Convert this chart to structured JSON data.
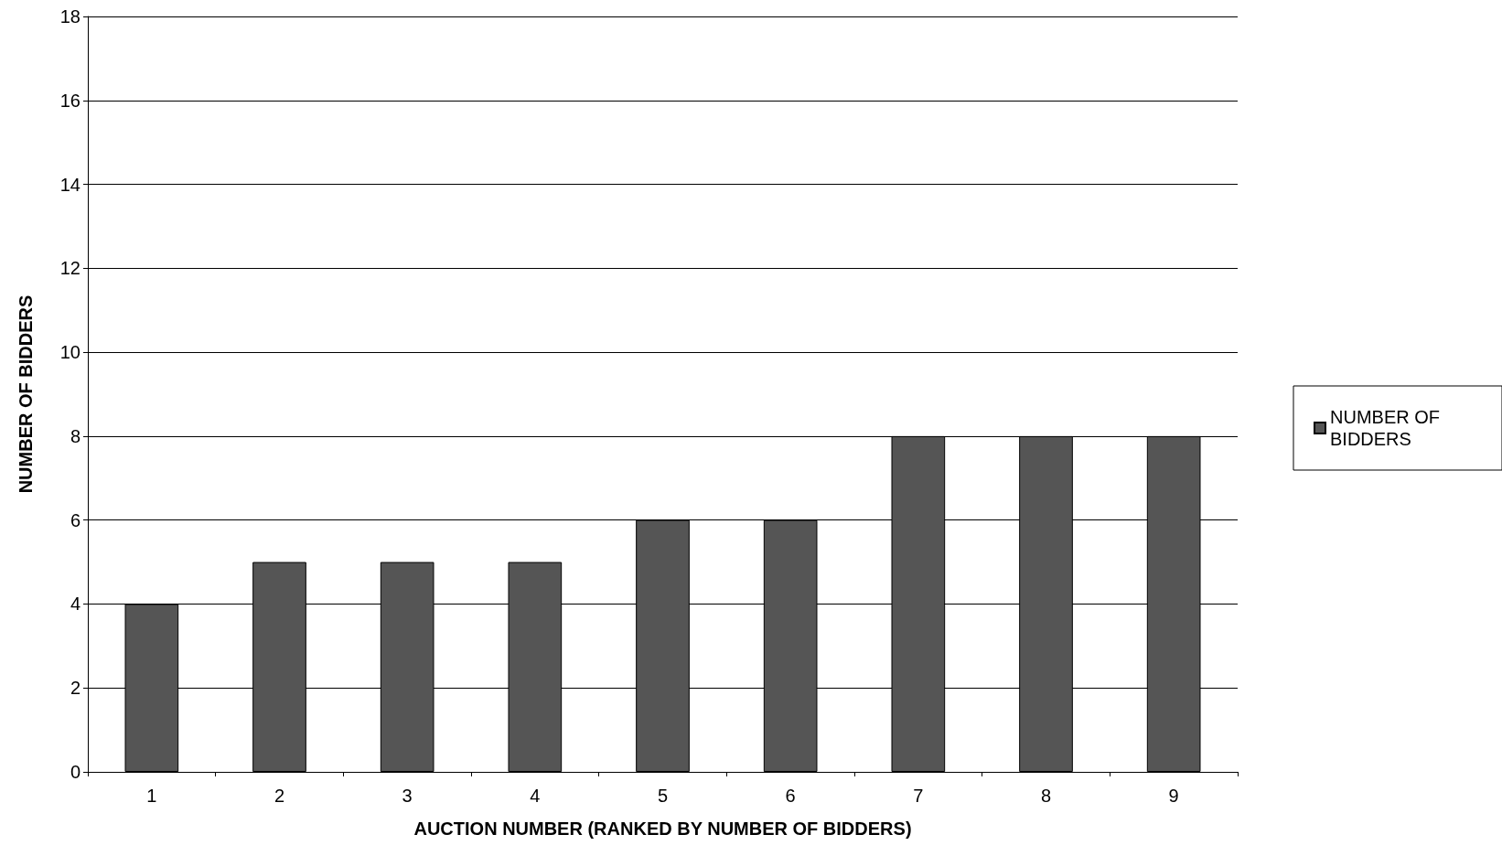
{
  "chart_data": {
    "type": "bar",
    "xlabel": "AUCTION NUMBER (RANKED BY NUMBER OF BIDDERS)",
    "ylabel": "NUMBER OF BIDDERS",
    "categories": [
      "1",
      "2",
      "3",
      "4",
      "5",
      "6",
      "7",
      "8",
      "9"
    ],
    "series": [
      {
        "name": "NUMBER OF BIDDERS",
        "color": "#555555",
        "values": [
          4,
          5,
          5,
          5,
          6,
          6,
          8,
          8,
          8
        ]
      }
    ],
    "ylim": [
      0,
      18
    ],
    "yticks": [
      0,
      2,
      4,
      6,
      8,
      10,
      12,
      14,
      16,
      18
    ],
    "grid": "y",
    "legend": "right"
  }
}
